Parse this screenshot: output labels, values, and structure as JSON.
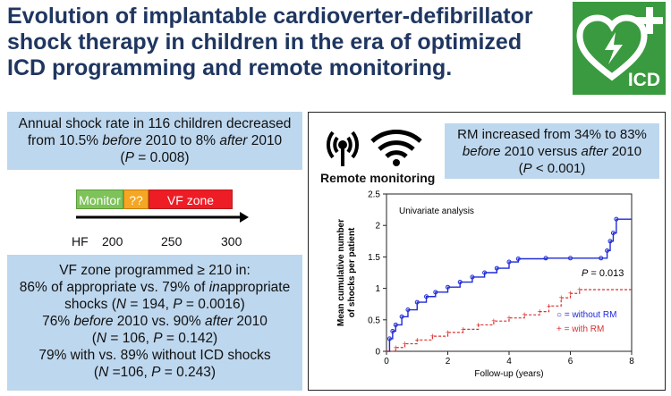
{
  "title": "Evolution of implantable cardioverter-defibrillator shock therapy in children in the era of optimized ICD programming and remote monitoring.",
  "logo": {
    "label": "ICD",
    "color": "#3a9a3f"
  },
  "box1": {
    "line1": "Annual shock rate in 116 children decreased",
    "line2a": "from 10.5% ",
    "line2b": "before",
    "line2c": " 2010 to 8% ",
    "line2d": "after",
    "line2e": " 2010",
    "line3a": "(",
    "line3b": "P",
    "line3c": " = 0.008)"
  },
  "timeline": {
    "segments": [
      {
        "label": "Monitor",
        "color": "#7ec25a"
      },
      {
        "label": "??",
        "color": "#f5a623"
      },
      {
        "label": "VF zone",
        "color": "#ee1c25"
      }
    ],
    "ticks": [
      "HF",
      "200",
      "250",
      "300"
    ]
  },
  "box3": {
    "l1": "VF zone programmed ≥ 210 in:",
    "l2": "86% of appropriate vs. 79% of ",
    "l2i": "in",
    "l2b": "appropriate",
    "l3a": "shocks (",
    "l3n": "N",
    "l3b": " = 194, ",
    "l3p": "P",
    "l3c": " = 0.0016)",
    "l4a": "76% ",
    "l4b": "before",
    "l4c": " 2010 vs. 90% ",
    "l4d": "after",
    "l4e": " 2010",
    "l5a": "(",
    "l5n": "N",
    "l5b": " = 106, ",
    "l5p": "P",
    "l5c": " = 0.142)",
    "l6": "79% with vs. 89% without ICD shocks",
    "l7a": "(",
    "l7n": "N",
    "l7b": " =106, ",
    "l7p": "P",
    "l7c": " = 0.243)"
  },
  "rm": {
    "label": "Remote monitoring",
    "l1": "RM increased from 34% to 83%",
    "l2a": "before",
    "l2b": " 2010 versus ",
    "l2c": "after",
    "l2d": " 2010",
    "l3a": "(",
    "l3p": "P",
    "l3b": " < 0.001)"
  },
  "chart_data": {
    "type": "line",
    "annotation": "Univariate analysis",
    "pvalue_p": "P",
    "pvalue_rest": " = 0.013",
    "xlabel": "Follow-up (years)",
    "ylabel_line1": "Mean cumulative number",
    "ylabel_line2": "of shocks per patient",
    "xlim": [
      0,
      8
    ],
    "ylim": [
      0,
      2.5
    ],
    "xticks": [
      0,
      2,
      4,
      6,
      8
    ],
    "yticks": [
      0,
      0.5,
      1,
      1.5,
      2,
      2.5
    ],
    "ytick_labels": [
      "0",
      "0.5",
      "1",
      "1.5",
      "2",
      "2.5"
    ],
    "series": [
      {
        "name": "without RM",
        "legend_symbol": "○",
        "legend_text": " = without RM",
        "color": "#1f2bd6",
        "x": [
          0,
          0.1,
          0.2,
          0.3,
          0.5,
          0.7,
          1.0,
          1.3,
          1.6,
          2.0,
          2.4,
          2.8,
          3.2,
          3.6,
          4.0,
          4.3,
          5.2,
          6.0,
          7.0,
          7.2,
          7.3,
          7.4,
          7.5,
          8.0
        ],
        "y": [
          0,
          0.2,
          0.32,
          0.42,
          0.55,
          0.66,
          0.78,
          0.87,
          0.94,
          1.02,
          1.1,
          1.18,
          1.25,
          1.32,
          1.42,
          1.47,
          1.48,
          1.48,
          1.48,
          1.6,
          1.75,
          1.88,
          2.1,
          2.1
        ]
      },
      {
        "name": "with RM",
        "legend_symbol": "+",
        "legend_text": " = with RM",
        "color": "#d93030",
        "x": [
          0,
          0.3,
          0.6,
          1.0,
          1.5,
          2.0,
          2.5,
          3.0,
          3.5,
          4.0,
          4.5,
          5.0,
          5.3,
          5.7,
          6.0,
          6.3,
          8.0
        ],
        "y": [
          0,
          0.06,
          0.12,
          0.18,
          0.24,
          0.3,
          0.35,
          0.42,
          0.48,
          0.53,
          0.58,
          0.63,
          0.72,
          0.85,
          0.92,
          0.98,
          0.98
        ]
      }
    ]
  }
}
